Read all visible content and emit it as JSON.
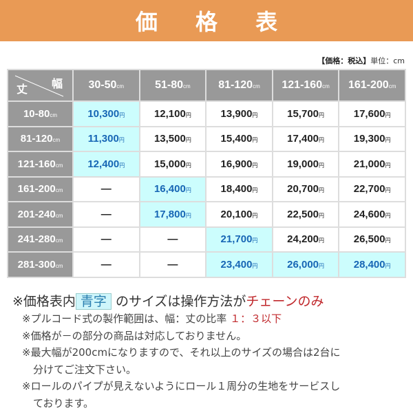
{
  "title": "価 格 表",
  "note": {
    "tax": "【価格：税込】",
    "unit": "単位：cm"
  },
  "corner": {
    "width_label": "幅",
    "height_label": "丈"
  },
  "unit_cm": "cm",
  "unit_yen": "円",
  "dash": "—",
  "columns": [
    "30-50",
    "51-80",
    "81-120",
    "121-160",
    "161-200"
  ],
  "rows": [
    {
      "label": "10-80",
      "cells": [
        {
          "v": "10,300",
          "blue": true
        },
        {
          "v": "12,100"
        },
        {
          "v": "13,900"
        },
        {
          "v": "15,700"
        },
        {
          "v": "17,600"
        }
      ]
    },
    {
      "label": "81-120",
      "cells": [
        {
          "v": "11,300",
          "blue": true
        },
        {
          "v": "13,500"
        },
        {
          "v": "15,400"
        },
        {
          "v": "17,400"
        },
        {
          "v": "19,300"
        }
      ]
    },
    {
      "label": "121-160",
      "cells": [
        {
          "v": "12,400",
          "blue": true
        },
        {
          "v": "15,000"
        },
        {
          "v": "16,900"
        },
        {
          "v": "19,000"
        },
        {
          "v": "21,000"
        }
      ]
    },
    {
      "label": "161-200",
      "cells": [
        {
          "v": null
        },
        {
          "v": "16,400",
          "blue": true
        },
        {
          "v": "18,400"
        },
        {
          "v": "20,700"
        },
        {
          "v": "22,700"
        }
      ]
    },
    {
      "label": "201-240",
      "cells": [
        {
          "v": null
        },
        {
          "v": "17,800",
          "blue": true
        },
        {
          "v": "20,100"
        },
        {
          "v": "22,500"
        },
        {
          "v": "24,600"
        }
      ]
    },
    {
      "label": "241-280",
      "cells": [
        {
          "v": null
        },
        {
          "v": null
        },
        {
          "v": "21,700",
          "blue": true
        },
        {
          "v": "24,200"
        },
        {
          "v": "26,500"
        }
      ]
    },
    {
      "label": "281-300",
      "cells": [
        {
          "v": null
        },
        {
          "v": null
        },
        {
          "v": "23,400",
          "blue": true
        },
        {
          "v": "26,000",
          "blue": true
        },
        {
          "v": "28,400",
          "blue": true
        }
      ]
    }
  ],
  "notes": {
    "main_prefix": "※価格表内",
    "main_box": "青字",
    "main_mid": "のサイズは操作方法が",
    "main_red": "チェーンのみ",
    "n1": "※プルコード式の製作範囲は、幅：丈の比率",
    "n1_red": "１：３以下",
    "n2": "※価格が－の部分の商品は対応しておりません。",
    "n3a": "※最大幅が200cmになりますので、それ以上のサイズの場合は2台に",
    "n3b": "分けてご注文下さい。",
    "n4a": "※ロールのパイプが見えないようにロール１周分の生地をサービスし",
    "n4b": "ております。"
  },
  "colors": {
    "banner": "#e99a55",
    "header": "#999999",
    "blue_cell": "#ccfdfd",
    "blue_text": "#1766b5",
    "red": "#c0282c"
  }
}
